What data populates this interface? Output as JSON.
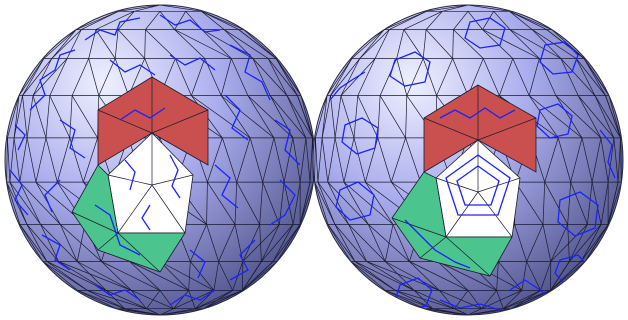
{
  "figure": {
    "panels": [
      {
        "id": "left-sphere",
        "curve_style": "open-zigzag"
      },
      {
        "id": "right-sphere",
        "curve_style": "closed-loops"
      }
    ],
    "colors": {
      "background": "#ffffff",
      "sphere_light": "#eef0ff",
      "sphere_mid": "#a9acec",
      "sphere_dark": "#4b4f86",
      "mesh_edge": "#1a1a2e",
      "curve": "#1a22ff",
      "face_red": "#c9504f",
      "face_green": "#4cc48e",
      "face_white": "#ffffff"
    }
  }
}
